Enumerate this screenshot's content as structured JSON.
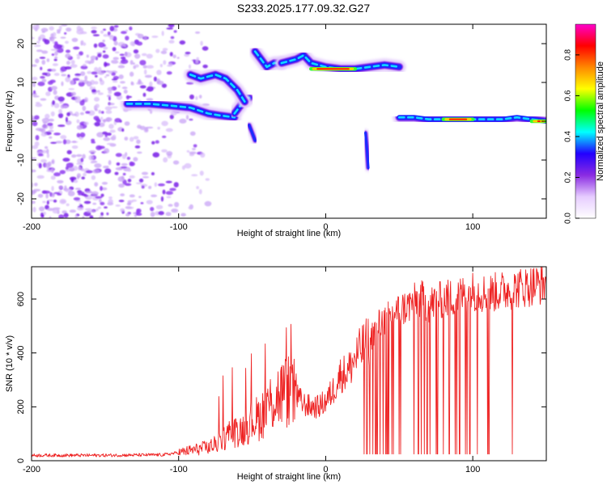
{
  "title": "S233.2025.177.09.32.G27",
  "chart_data": [
    {
      "type": "heatmap",
      "title": "S233.2025.177.09.32.G27",
      "xlabel": "Height of straight line (km)",
      "ylabel": "Frequency (Hz)",
      "xlim": [
        -200,
        150
      ],
      "ylim": [
        -25,
        25
      ],
      "xticks": [
        -200,
        -100,
        0,
        100
      ],
      "yticks": [
        -20,
        -10,
        0,
        10,
        20
      ],
      "colorbar": {
        "label": "Normalized spectral amplitude",
        "range": [
          0,
          0.95
        ],
        "ticks": [
          0.0,
          0.2,
          0.4,
          0.6,
          0.8
        ],
        "colormap": [
          "#ffffff",
          "#e6ccff",
          "#8a2be2",
          "#2200ff",
          "#00ffff",
          "#00ff00",
          "#ffff00",
          "#ff8800",
          "#ff0000",
          "#ff00cc"
        ]
      },
      "tracks": [
        {
          "x": [
            -135,
            -120,
            -105,
            -92,
            -80,
            -72,
            -62
          ],
          "y": [
            4.5,
            4.5,
            4,
            3.5,
            2,
            1.5,
            1
          ]
        },
        {
          "x": [
            -62,
            -58,
            -55,
            -52
          ],
          "y": [
            2,
            4,
            6,
            6
          ]
        },
        {
          "x": [
            -92,
            -85,
            -75,
            -68,
            -60,
            -55
          ],
          "y": [
            12,
            11,
            12,
            11,
            8,
            5
          ]
        },
        {
          "x": [
            -48,
            -44,
            -40,
            -35,
            -30
          ],
          "y": [
            18,
            16,
            14,
            15,
            15
          ]
        },
        {
          "x": [
            -30,
            -20,
            -15,
            -10,
            0,
            10,
            20,
            30,
            40,
            50
          ],
          "y": [
            15,
            16,
            17,
            15,
            14,
            13.5,
            13.5,
            14,
            14.5,
            14
          ]
        },
        {
          "x": [
            50,
            60,
            70,
            80,
            90,
            100,
            110,
            120,
            130,
            140,
            150
          ],
          "y": [
            1,
            1,
            0.5,
            0.5,
            0.5,
            0.5,
            0.5,
            0.5,
            1,
            0.5,
            0
          ]
        },
        {
          "x": [
            27,
            28,
            29
          ],
          "y": [
            -3,
            -7,
            -12
          ]
        },
        {
          "x": [
            -52,
            -50,
            -48
          ],
          "y": [
            -1,
            -3,
            -5
          ]
        }
      ],
      "peak_segments": [
        {
          "x": [
            -10,
            20
          ],
          "y": 13.5
        },
        {
          "x": [
            80,
            100
          ],
          "y": 0.5
        },
        {
          "x": [
            140,
            150
          ],
          "y": 0
        }
      ],
      "noise_region": {
        "x": [
          -200,
          -100
        ],
        "y": [
          -25,
          25
        ]
      }
    },
    {
      "type": "line",
      "xlabel": "Height of straight line (km)",
      "ylabel": "SNR (10 * v/v)",
      "xlim": [
        -200,
        150
      ],
      "ylim": [
        0,
        720
      ],
      "xticks": [
        -200,
        -100,
        0,
        100
      ],
      "yticks": [
        0,
        200,
        400,
        600
      ],
      "color": "#ee2222",
      "envelope": {
        "x": [
          -200,
          -150,
          -110,
          -100,
          -90,
          -80,
          -75,
          -70,
          -65,
          -60,
          -55,
          -50,
          -45,
          -40,
          -35,
          -30,
          -25,
          -20,
          -15,
          -10,
          -5,
          0,
          5,
          10,
          15,
          20,
          25,
          30,
          35,
          40,
          45,
          50,
          55,
          60,
          65,
          70,
          80,
          90,
          100,
          110,
          120,
          130,
          140,
          150
        ],
        "y": [
          20,
          20,
          22,
          30,
          40,
          50,
          60,
          80,
          100,
          110,
          120,
          150,
          160,
          200,
          230,
          250,
          260,
          240,
          210,
          200,
          200,
          220,
          260,
          320,
          330,
          380,
          420,
          450,
          500,
          520,
          540,
          560,
          570,
          590,
          600,
          580,
          600,
          610,
          630,
          620,
          630,
          640,
          650,
          660
        ]
      },
      "dropouts_x": [
        26,
        28,
        30,
        32,
        34,
        35,
        37,
        39,
        41,
        42,
        43,
        45,
        46,
        50,
        51,
        60,
        63,
        65,
        67,
        69,
        71,
        75,
        76,
        80,
        84,
        88,
        89,
        91,
        95,
        96,
        98,
        103,
        110,
        111,
        127
      ],
      "dropout_floor": 25
    }
  ]
}
